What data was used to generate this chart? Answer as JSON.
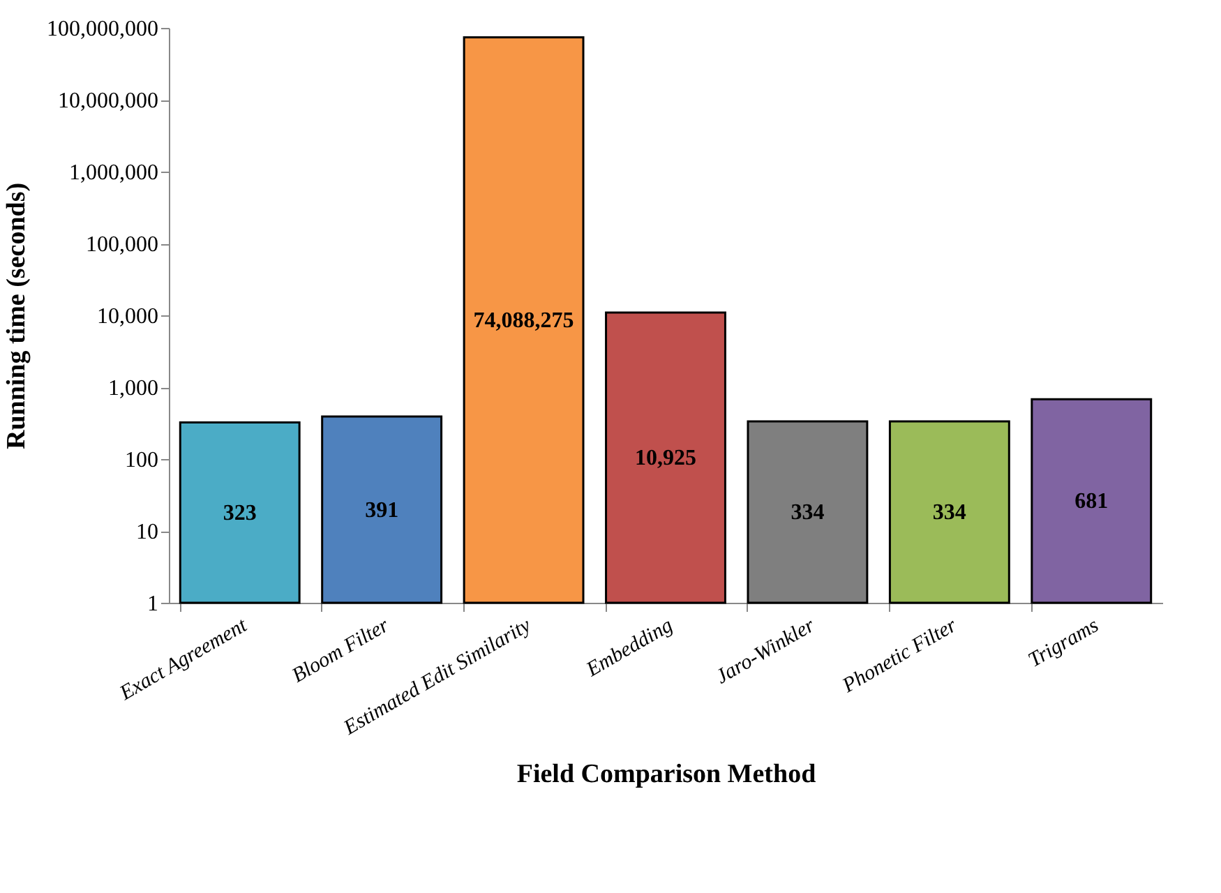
{
  "chart_data": {
    "type": "bar",
    "xlabel": "Field Comparison Method",
    "ylabel": "Running time (seconds)",
    "categories": [
      "Exact Agreement",
      "Bloom Filter",
      "Estimated Edit Similarity",
      "Embedding",
      "Jaro-Winkler",
      "Phonetic Filter",
      "Trigrams"
    ],
    "values": [
      323,
      391,
      74088275,
      10925,
      334,
      334,
      681
    ],
    "colors": [
      "#4bacc6",
      "#4f81bd",
      "#f79646",
      "#c0504d",
      "#7f7f7f",
      "#9bbb59",
      "#8064a2"
    ],
    "value_labels": [
      "323",
      "391",
      "74,088,275",
      "10,925",
      "334",
      "334",
      "681"
    ],
    "log": true,
    "ylim": [
      1,
      100000000
    ],
    "yticks": [
      1,
      10,
      100,
      {
        "value": 1000,
        "label": "1,000"
      },
      {
        "value": 10000,
        "label": "10,000"
      },
      {
        "value": 100000,
        "label": "100,000"
      },
      {
        "value": 1000000,
        "label": "1,000,000"
      },
      {
        "value": 10000000,
        "label": "10,000,000"
      },
      {
        "value": 100000000,
        "label": "100,000,000"
      }
    ],
    "grid": false,
    "legend": false
  }
}
